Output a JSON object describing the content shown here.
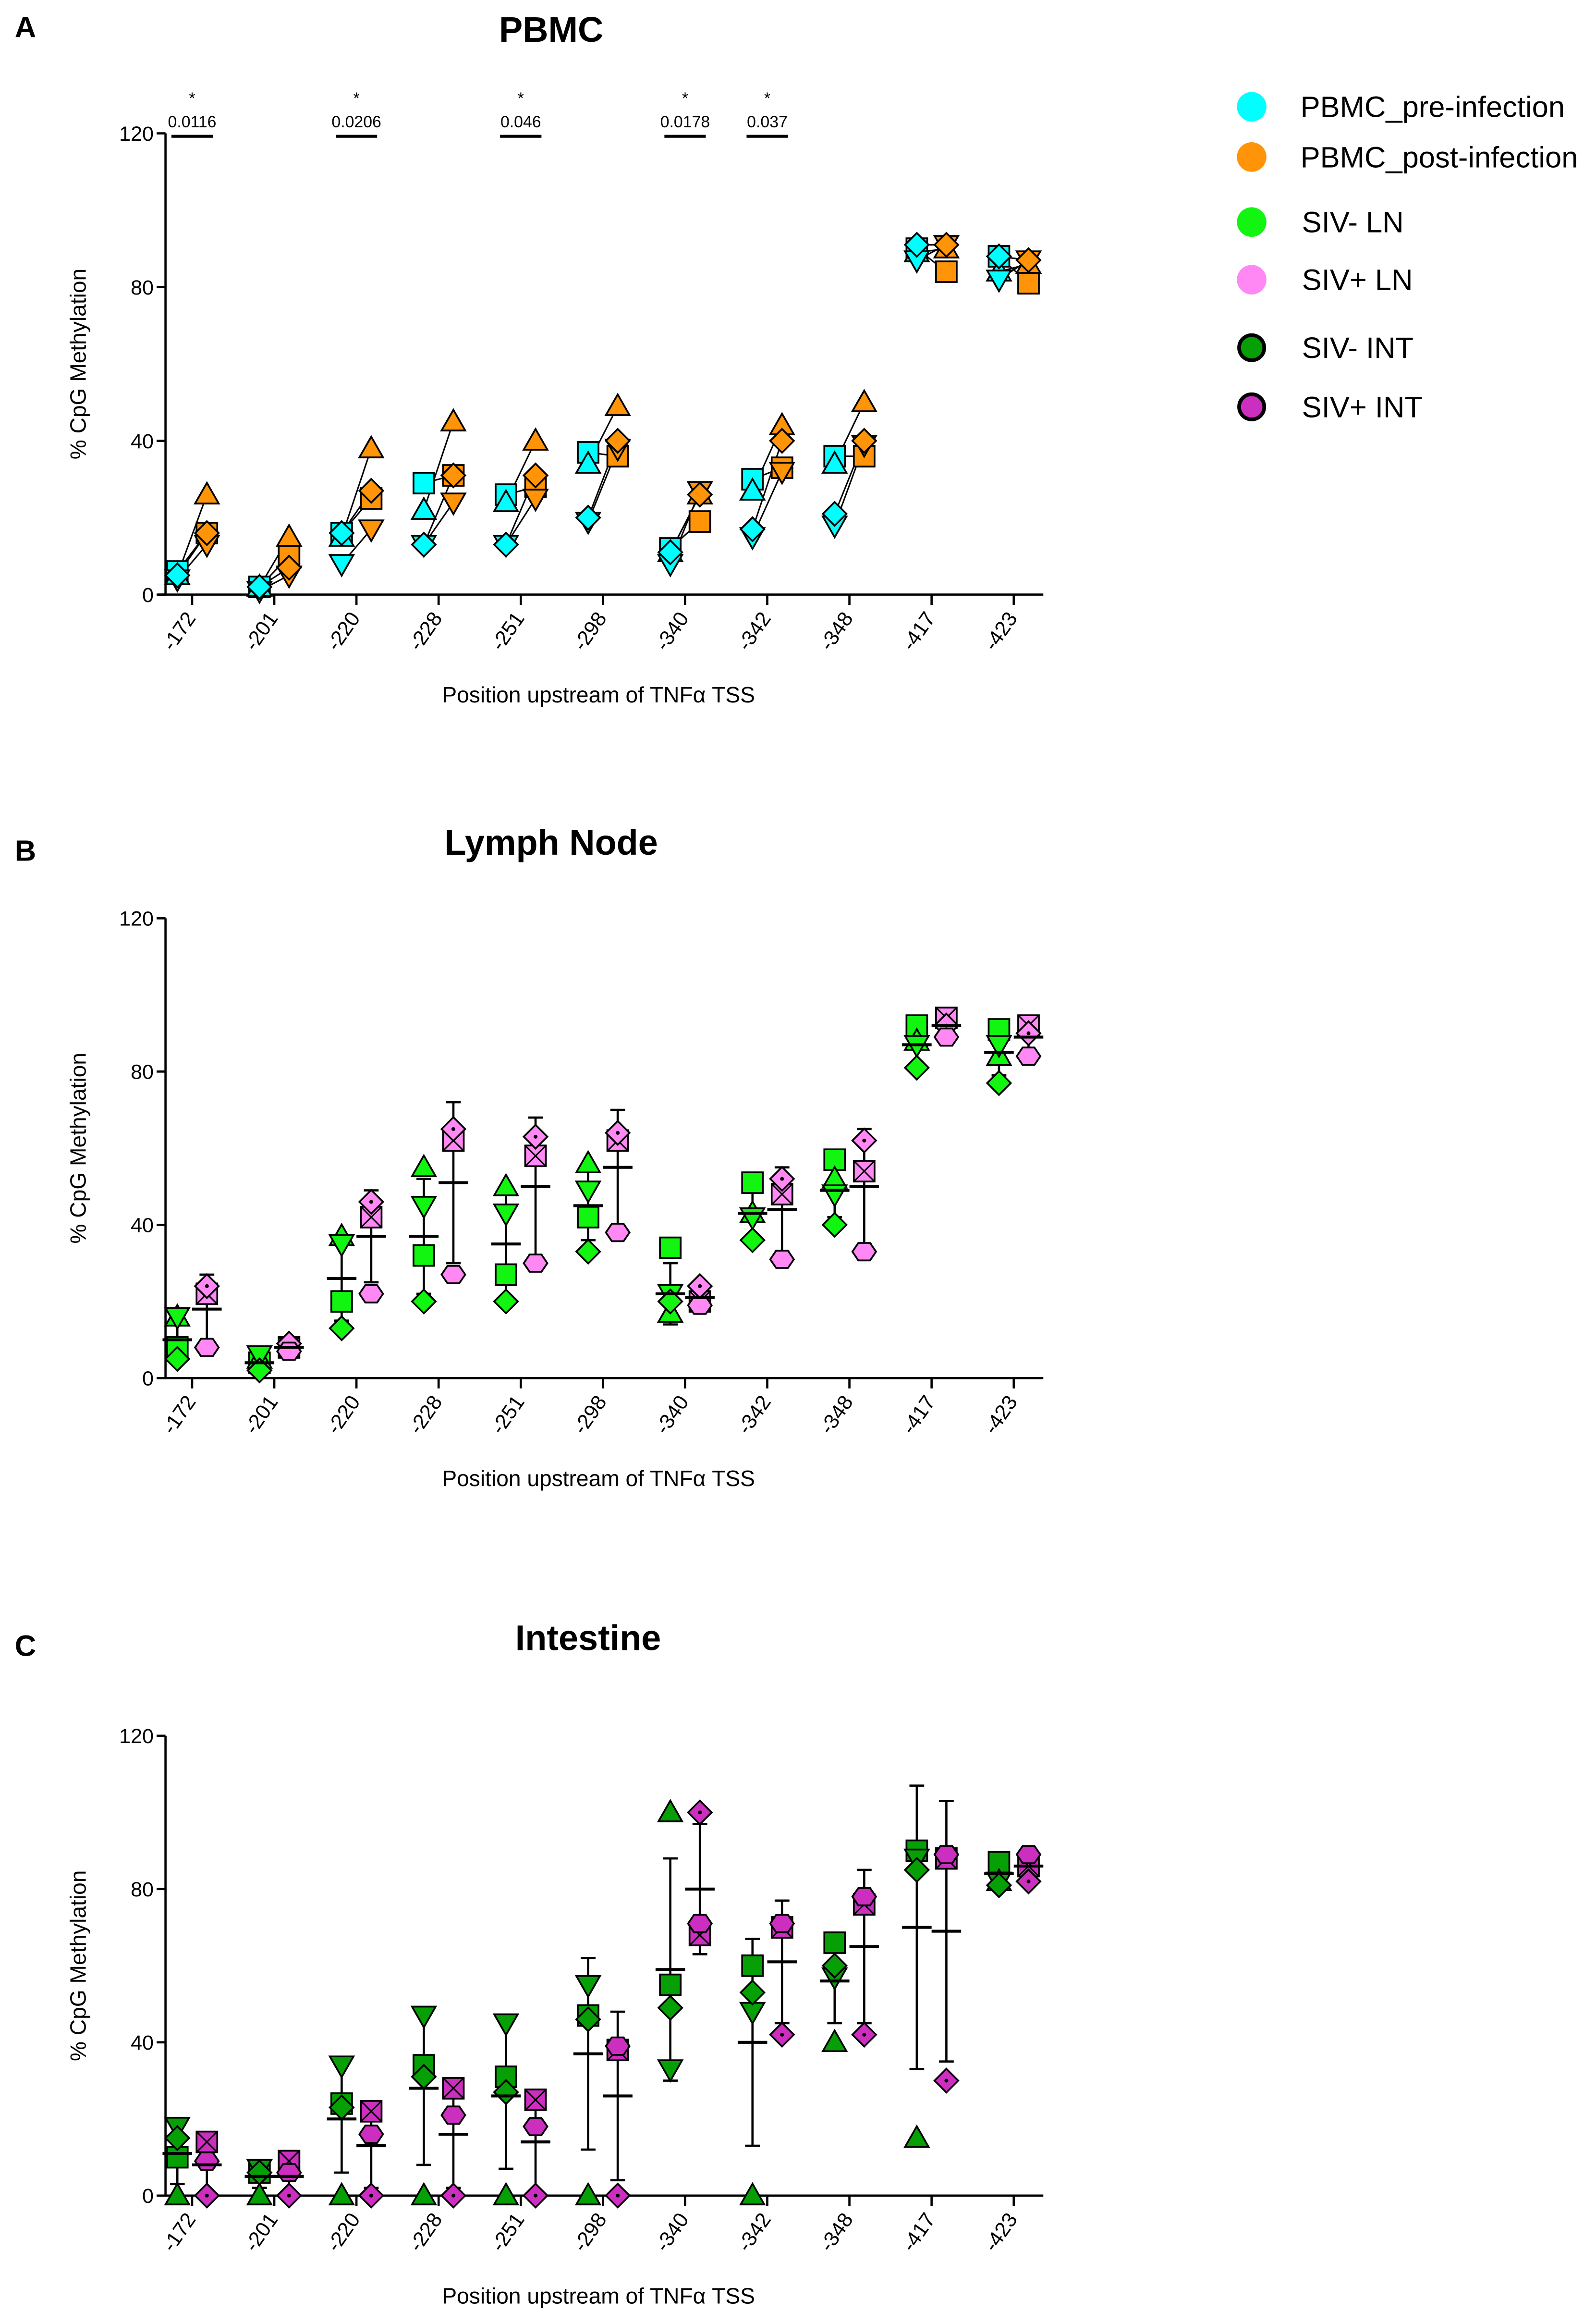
{
  "legend": [
    {
      "label": "PBMC_pre-infection",
      "color": "#00FFFF",
      "outlined": false
    },
    {
      "label": "PBMC_post-infection",
      "color": "#FF9408",
      "outlined": false
    },
    {
      "label": "SIV- LN",
      "color": "#11F511",
      "outlined": false
    },
    {
      "label": "SIV+ LN",
      "color": "#FF88F5",
      "outlined": false
    },
    {
      "label": "SIV- INT",
      "color": "#06A006",
      "outlined": true
    },
    {
      "label": "SIV+ INT",
      "color": "#CC2EC0",
      "outlined": true
    }
  ],
  "chart_data": [
    {
      "panel": "A",
      "type": "scatter",
      "title": "PBMC",
      "xlabel": "Position upstream of TNFα TSS",
      "ylabel": "% CpG Methylation",
      "ylim": [
        0,
        120
      ],
      "yticks": [
        0,
        40,
        80,
        120
      ],
      "categories": [
        "-172",
        "-201",
        "-220",
        "-228",
        "-251",
        "-298",
        "-340",
        "-342",
        "-348",
        "-417",
        "-423"
      ],
      "paired": true,
      "markers": [
        "square",
        "triangle-up",
        "triangle-down",
        "diamond"
      ],
      "series": [
        {
          "name": "PBMC_pre-infection",
          "color": "#00FFFF",
          "values": [
            [
              6,
              5,
              4,
              5
            ],
            [
              2,
              2,
              1,
              2
            ],
            [
              16,
              15,
              8,
              16
            ],
            [
              29,
              22,
              13,
              13
            ],
            [
              26,
              24,
              13,
              13
            ],
            [
              37,
              34,
              19,
              20
            ],
            [
              12,
              11,
              8,
              11
            ],
            [
              30,
              27,
              15,
              17
            ],
            [
              36,
              34,
              18,
              21
            ],
            [
              90,
              89,
              87,
              91
            ],
            [
              88,
              84,
              82,
              88
            ]
          ]
        },
        {
          "name": "PBMC_post-infection",
          "color": "#FF9408",
          "values": [
            [
              16,
              26,
              13,
              16
            ],
            [
              10,
              15,
              5,
              7
            ],
            [
              25,
              38,
              17,
              27
            ],
            [
              31,
              45,
              24,
              31
            ],
            [
              28,
              40,
              25,
              31
            ],
            [
              36,
              49,
              38,
              40
            ],
            [
              19,
              26,
              27,
              26
            ],
            [
              33,
              44,
              32,
              40
            ],
            [
              36,
              50,
              39,
              40
            ],
            [
              84,
              90,
              91,
              91
            ],
            [
              81,
              86,
              87,
              87
            ]
          ]
        }
      ],
      "annotations": [
        {
          "category": "-172",
          "star": "*",
          "p": "0.0116"
        },
        {
          "category": "-220",
          "star": "*",
          "p": "0.0206"
        },
        {
          "category": "-251",
          "star": "*",
          "p": "0.046"
        },
        {
          "category": "-340",
          "star": "*",
          "p": "0.0178"
        },
        {
          "category": "-342",
          "star": "*",
          "p": "0.037"
        }
      ]
    },
    {
      "panel": "B",
      "type": "scatter",
      "title": "Lymph Node",
      "xlabel": "Position upstream of TNFα TSS",
      "ylabel": "% CpG Methylation",
      "ylim": [
        0,
        120
      ],
      "yticks": [
        0,
        40,
        80,
        120
      ],
      "categories": [
        "-172",
        "-201",
        "-220",
        "-228",
        "-251",
        "-298",
        "-340",
        "-342",
        "-348",
        "-417",
        "-423"
      ],
      "paired": false,
      "series": [
        {
          "name": "SIV- LN",
          "color": "#11F511",
          "markers": [
            "square",
            "triangle-up",
            "triangle-down",
            "diamond"
          ],
          "values": [
            [
              8,
              16,
              16,
              5
            ],
            [
              4,
              5,
              6,
              2
            ],
            [
              20,
              37,
              35,
              13
            ],
            [
              32,
              55,
              45,
              20
            ],
            [
              27,
              50,
              43,
              20
            ],
            [
              42,
              56,
              49,
              33
            ],
            [
              34,
              17,
              22,
              20
            ],
            [
              51,
              43,
              42,
              36
            ],
            [
              57,
              52,
              48,
              40
            ],
            [
              92,
              88,
              87,
              81
            ],
            [
              91,
              84,
              87,
              77
            ]
          ],
          "mean": [
            10,
            4,
            26,
            37,
            35,
            45,
            22,
            43,
            49,
            87,
            85
          ],
          "sd": [
            5,
            2,
            11,
            15,
            14,
            9,
            8,
            6,
            7,
            5,
            6
          ]
        },
        {
          "name": "SIV+ LN",
          "color": "#FF88F5",
          "markers": [
            "square-x",
            "diamond-dot",
            "hexagon"
          ],
          "values": [
            [
              22,
              24,
              8
            ],
            [
              8,
              9,
              7
            ],
            [
              42,
              46,
              22
            ],
            [
              62,
              65,
              27
            ],
            [
              58,
              63,
              30
            ],
            [
              62,
              64,
              38
            ],
            [
              20,
              24,
              19
            ],
            [
              48,
              52,
              31
            ],
            [
              54,
              62,
              33
            ],
            [
              94,
              92,
              89
            ],
            [
              92,
              90,
              84
            ]
          ],
          "mean": [
            18,
            8,
            37,
            51,
            50,
            55,
            21,
            44,
            50,
            92,
            89
          ],
          "sd": [
            9,
            1,
            12,
            21,
            18,
            15,
            3,
            11,
            15,
            3,
            4
          ]
        }
      ]
    },
    {
      "panel": "C",
      "type": "scatter",
      "title": "Intestine",
      "xlabel": "Position upstream of TNFα TSS",
      "ylabel": "% CpG Methylation",
      "ylim": [
        0,
        120
      ],
      "yticks": [
        0,
        40,
        80,
        120
      ],
      "categories": [
        "-172",
        "-201",
        "-220",
        "-228",
        "-251",
        "-298",
        "-340",
        "-342",
        "-348",
        "-417",
        "-423"
      ],
      "paired": false,
      "series": [
        {
          "name": "SIV- INT",
          "color": "#06A006",
          "markers": [
            "square",
            "triangle-up",
            "triangle-down",
            "diamond"
          ],
          "values": [
            [
              10,
              0,
              18,
              15
            ],
            [
              6,
              0,
              7,
              6
            ],
            [
              24,
              0,
              34,
              23
            ],
            [
              34,
              0,
              47,
              31
            ],
            [
              31,
              0,
              45,
              27
            ],
            [
              47,
              0,
              55,
              46
            ],
            [
              55,
              100,
              33,
              49
            ],
            [
              60,
              0,
              48,
              53
            ],
            [
              66,
              40,
              57,
              60
            ],
            [
              90,
              15,
              88,
              85
            ],
            [
              87,
              82,
              82,
              81
            ]
          ],
          "mean": [
            11,
            5,
            20,
            28,
            26,
            37,
            59,
            40,
            56,
            70,
            84
          ],
          "sd": [
            8,
            3,
            14,
            20,
            19,
            25,
            29,
            27,
            11,
            37,
            3
          ]
        },
        {
          "name": "SIV+ INT",
          "color": "#CC2EC0",
          "markers": [
            "square-x",
            "diamond-dot",
            "hexagon"
          ],
          "values": [
            [
              14,
              0,
              9
            ],
            [
              9,
              0,
              6
            ],
            [
              22,
              0,
              16
            ],
            [
              28,
              0,
              21
            ],
            [
              25,
              0,
              18
            ],
            [
              38,
              0,
              39
            ],
            [
              68,
              100,
              71
            ],
            [
              70,
              42,
              71
            ],
            [
              76,
              42,
              78
            ],
            [
              88,
              30,
              89
            ],
            [
              86,
              82,
              89
            ]
          ],
          "mean": [
            8,
            5,
            13,
            16,
            14,
            26,
            80,
            61,
            65,
            69,
            86
          ],
          "sd": [
            7,
            5,
            11,
            14,
            13,
            22,
            17,
            16,
            20,
            34,
            3
          ]
        }
      ]
    }
  ]
}
